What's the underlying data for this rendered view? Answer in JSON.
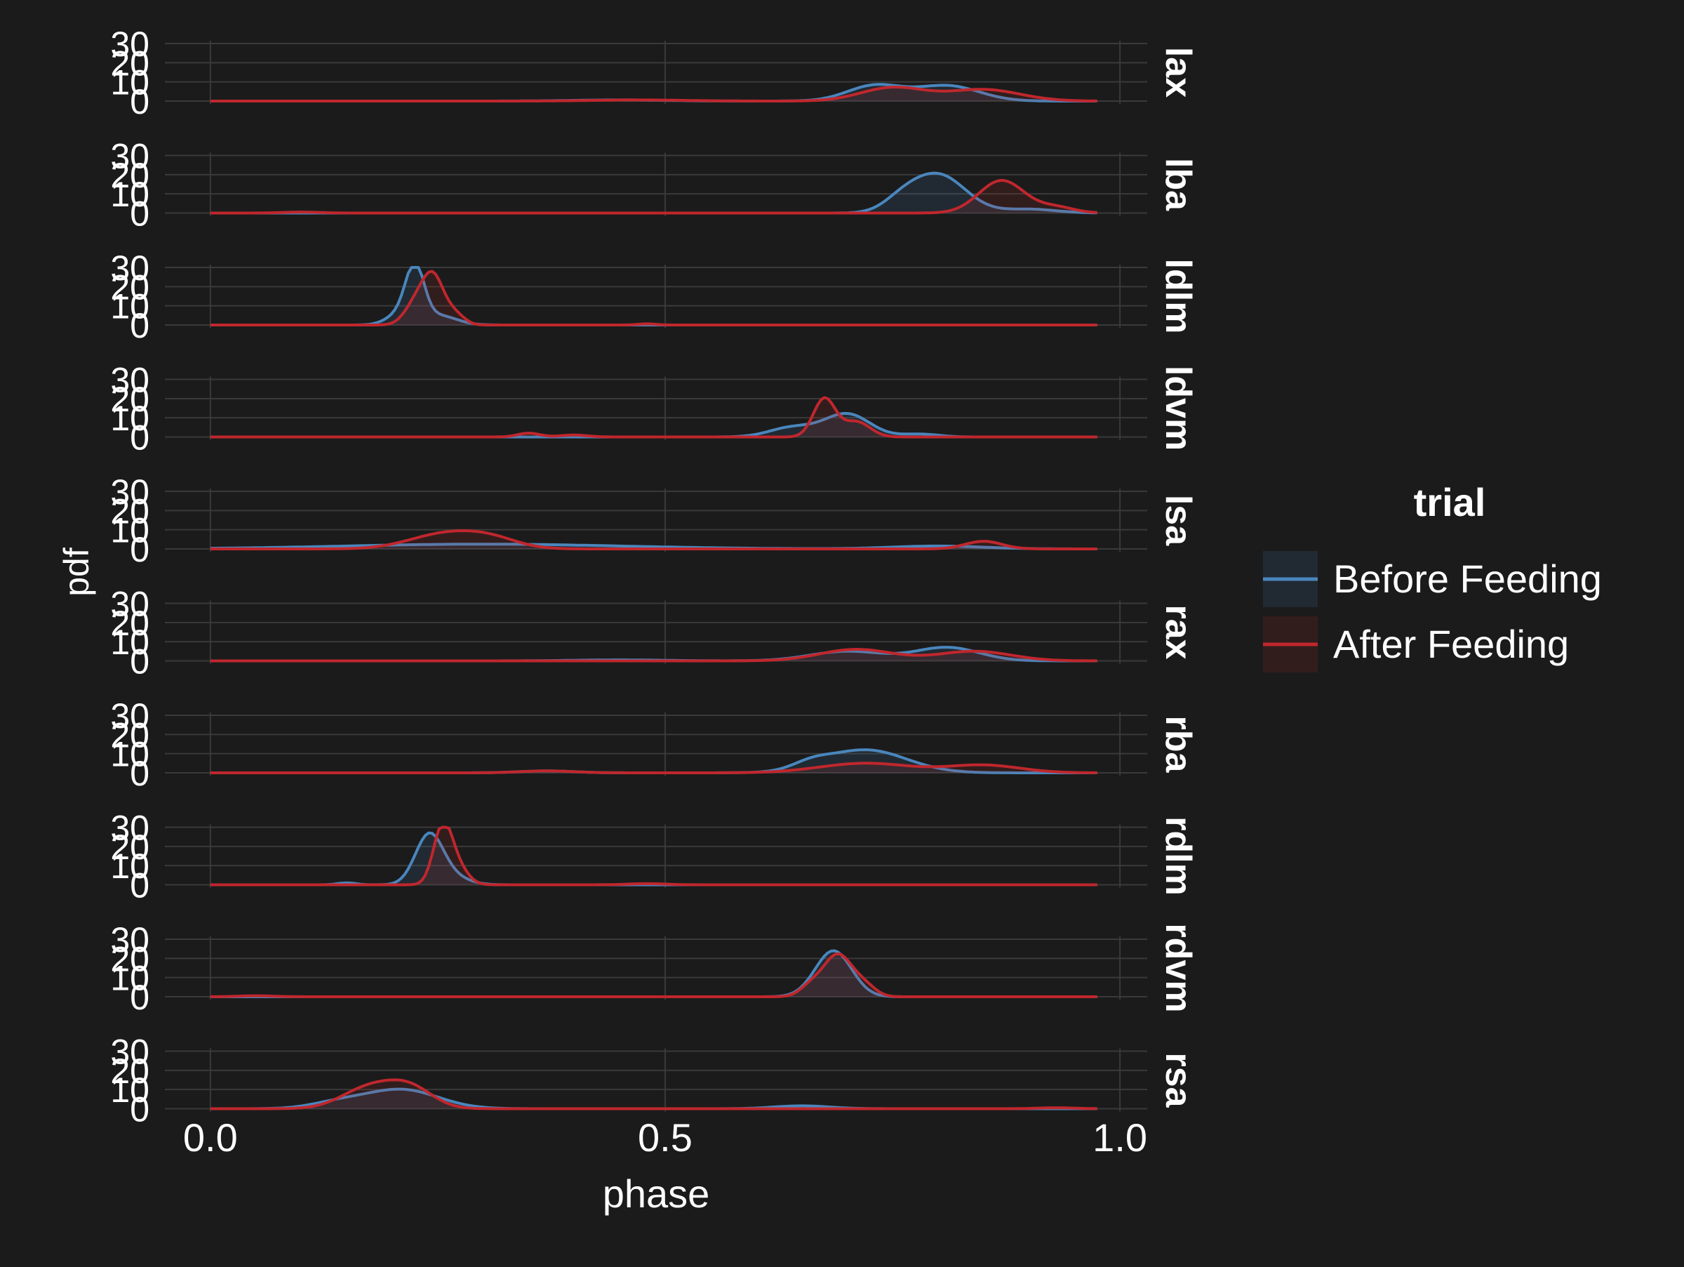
{
  "theme": {
    "background": "#1b1b1b",
    "text_color": "#ffffff",
    "grid_color": "#3a3a3a",
    "before_color": "#4a86bd",
    "after_color": "#c0272d"
  },
  "chart_data": {
    "type": "area",
    "layout": "faceted-rows",
    "xlabel": "phase",
    "ylabel": "pdf",
    "xlim": [
      -0.05,
      1.03
    ],
    "ylim": [
      0,
      30
    ],
    "x_ticks": [
      "0.0",
      "0.5",
      "1.0"
    ],
    "x_tick_values": [
      0,
      0.5,
      1
    ],
    "y_ticks": [
      "0",
      "10",
      "20",
      "30"
    ],
    "y_tick_values": [
      0,
      10,
      20,
      30
    ],
    "grid": true,
    "legend": {
      "title": "trial",
      "placement": "right",
      "entries": [
        "Before Feeding",
        "After Feeding"
      ]
    },
    "facets": [
      {
        "label": "lax",
        "series": [
          {
            "name": "Before Feeding",
            "peaks": [
              [
                0.73,
                8,
                0.03
              ],
              [
                0.81,
                8,
                0.035
              ],
              [
                0.45,
                0.6,
                0.05
              ]
            ]
          },
          {
            "name": "After Feeding",
            "peaks": [
              [
                0.75,
                7,
                0.035
              ],
              [
                0.85,
                6,
                0.04
              ],
              [
                0.47,
                0.6,
                0.05
              ]
            ]
          }
        ]
      },
      {
        "label": "lba",
        "series": [
          {
            "name": "Before Feeding",
            "peaks": [
              [
                0.8,
                20,
                0.03
              ],
              [
                0.76,
                5,
                0.02
              ],
              [
                0.9,
                2,
                0.03
              ]
            ]
          },
          {
            "name": "After Feeding",
            "peaks": [
              [
                0.87,
                17,
                0.025
              ],
              [
                0.93,
                3,
                0.02
              ],
              [
                0.1,
                0.5,
                0.02
              ]
            ]
          }
        ]
      },
      {
        "label": "ldlm",
        "series": [
          {
            "name": "Before Feeding",
            "peaks": [
              [
                0.225,
                27,
                0.01
              ],
              [
                0.21,
                6,
                0.015
              ],
              [
                0.25,
                5,
                0.02
              ]
            ]
          },
          {
            "name": "After Feeding",
            "peaks": [
              [
                0.245,
                25,
                0.012
              ],
              [
                0.225,
                10,
                0.012
              ],
              [
                0.27,
                5,
                0.01
              ],
              [
                0.48,
                0.6,
                0.01
              ]
            ]
          }
        ]
      },
      {
        "label": "ldvm",
        "series": [
          {
            "name": "Before Feeding",
            "peaks": [
              [
                0.7,
                12,
                0.025
              ],
              [
                0.64,
                5,
                0.025
              ],
              [
                0.78,
                1.5,
                0.02
              ]
            ]
          },
          {
            "name": "After Feeding",
            "peaks": [
              [
                0.675,
                20,
                0.012
              ],
              [
                0.71,
                8,
                0.015
              ],
              [
                0.35,
                2,
                0.012
              ],
              [
                0.4,
                1,
                0.015
              ]
            ]
          }
        ]
      },
      {
        "label": "lsa",
        "series": [
          {
            "name": "Before Feeding",
            "peaks": [
              [
                0.3,
                2.5,
                0.15
              ],
              [
                0.8,
                1.5,
                0.05
              ]
            ]
          },
          {
            "name": "After Feeding",
            "peaks": [
              [
                0.26,
                8,
                0.04
              ],
              [
                0.31,
                4,
                0.03
              ],
              [
                0.85,
                4,
                0.02
              ]
            ]
          }
        ]
      },
      {
        "label": "rax",
        "series": [
          {
            "name": "Before Feeding",
            "peaks": [
              [
                0.7,
                5,
                0.04
              ],
              [
                0.81,
                7,
                0.035
              ],
              [
                0.45,
                0.5,
                0.05
              ]
            ]
          },
          {
            "name": "After Feeding",
            "peaks": [
              [
                0.71,
                6,
                0.04
              ],
              [
                0.84,
                5,
                0.04
              ]
            ]
          }
        ]
      },
      {
        "label": "rba",
        "series": [
          {
            "name": "Before Feeding",
            "peaks": [
              [
                0.72,
                12,
                0.045
              ],
              [
                0.66,
                3,
                0.02
              ],
              [
                0.37,
                1,
                0.03
              ]
            ]
          },
          {
            "name": "After Feeding",
            "peaks": [
              [
                0.72,
                5,
                0.05
              ],
              [
                0.85,
                4,
                0.04
              ],
              [
                0.37,
                1,
                0.03
              ]
            ]
          }
        ]
      },
      {
        "label": "rdlm",
        "series": [
          {
            "name": "Before Feeding",
            "peaks": [
              [
                0.24,
                24,
                0.015
              ],
              [
                0.26,
                5,
                0.02
              ],
              [
                0.15,
                1,
                0.01
              ]
            ]
          },
          {
            "name": "After Feeding",
            "peaks": [
              [
                0.255,
                28,
                0.01
              ],
              [
                0.27,
                10,
                0.012
              ],
              [
                0.48,
                0.6,
                0.02
              ]
            ]
          }
        ]
      },
      {
        "label": "rdvm",
        "series": [
          {
            "name": "Before Feeding",
            "peaks": [
              [
                0.685,
                24,
                0.02
              ]
            ]
          },
          {
            "name": "After Feeding",
            "peaks": [
              [
                0.69,
                22,
                0.016
              ],
              [
                0.66,
                5,
                0.012
              ],
              [
                0.72,
                5,
                0.012
              ],
              [
                0.05,
                0.5,
                0.02
              ]
            ]
          }
        ]
      },
      {
        "label": "rsa",
        "series": [
          {
            "name": "Before Feeding",
            "peaks": [
              [
                0.21,
                10,
                0.04
              ],
              [
                0.14,
                3,
                0.03
              ],
              [
                0.65,
                1.5,
                0.03
              ]
            ]
          },
          {
            "name": "After Feeding",
            "peaks": [
              [
                0.175,
                11,
                0.03
              ],
              [
                0.22,
                10,
                0.025
              ],
              [
                0.93,
                0.5,
                0.02
              ]
            ]
          }
        ]
      }
    ]
  }
}
